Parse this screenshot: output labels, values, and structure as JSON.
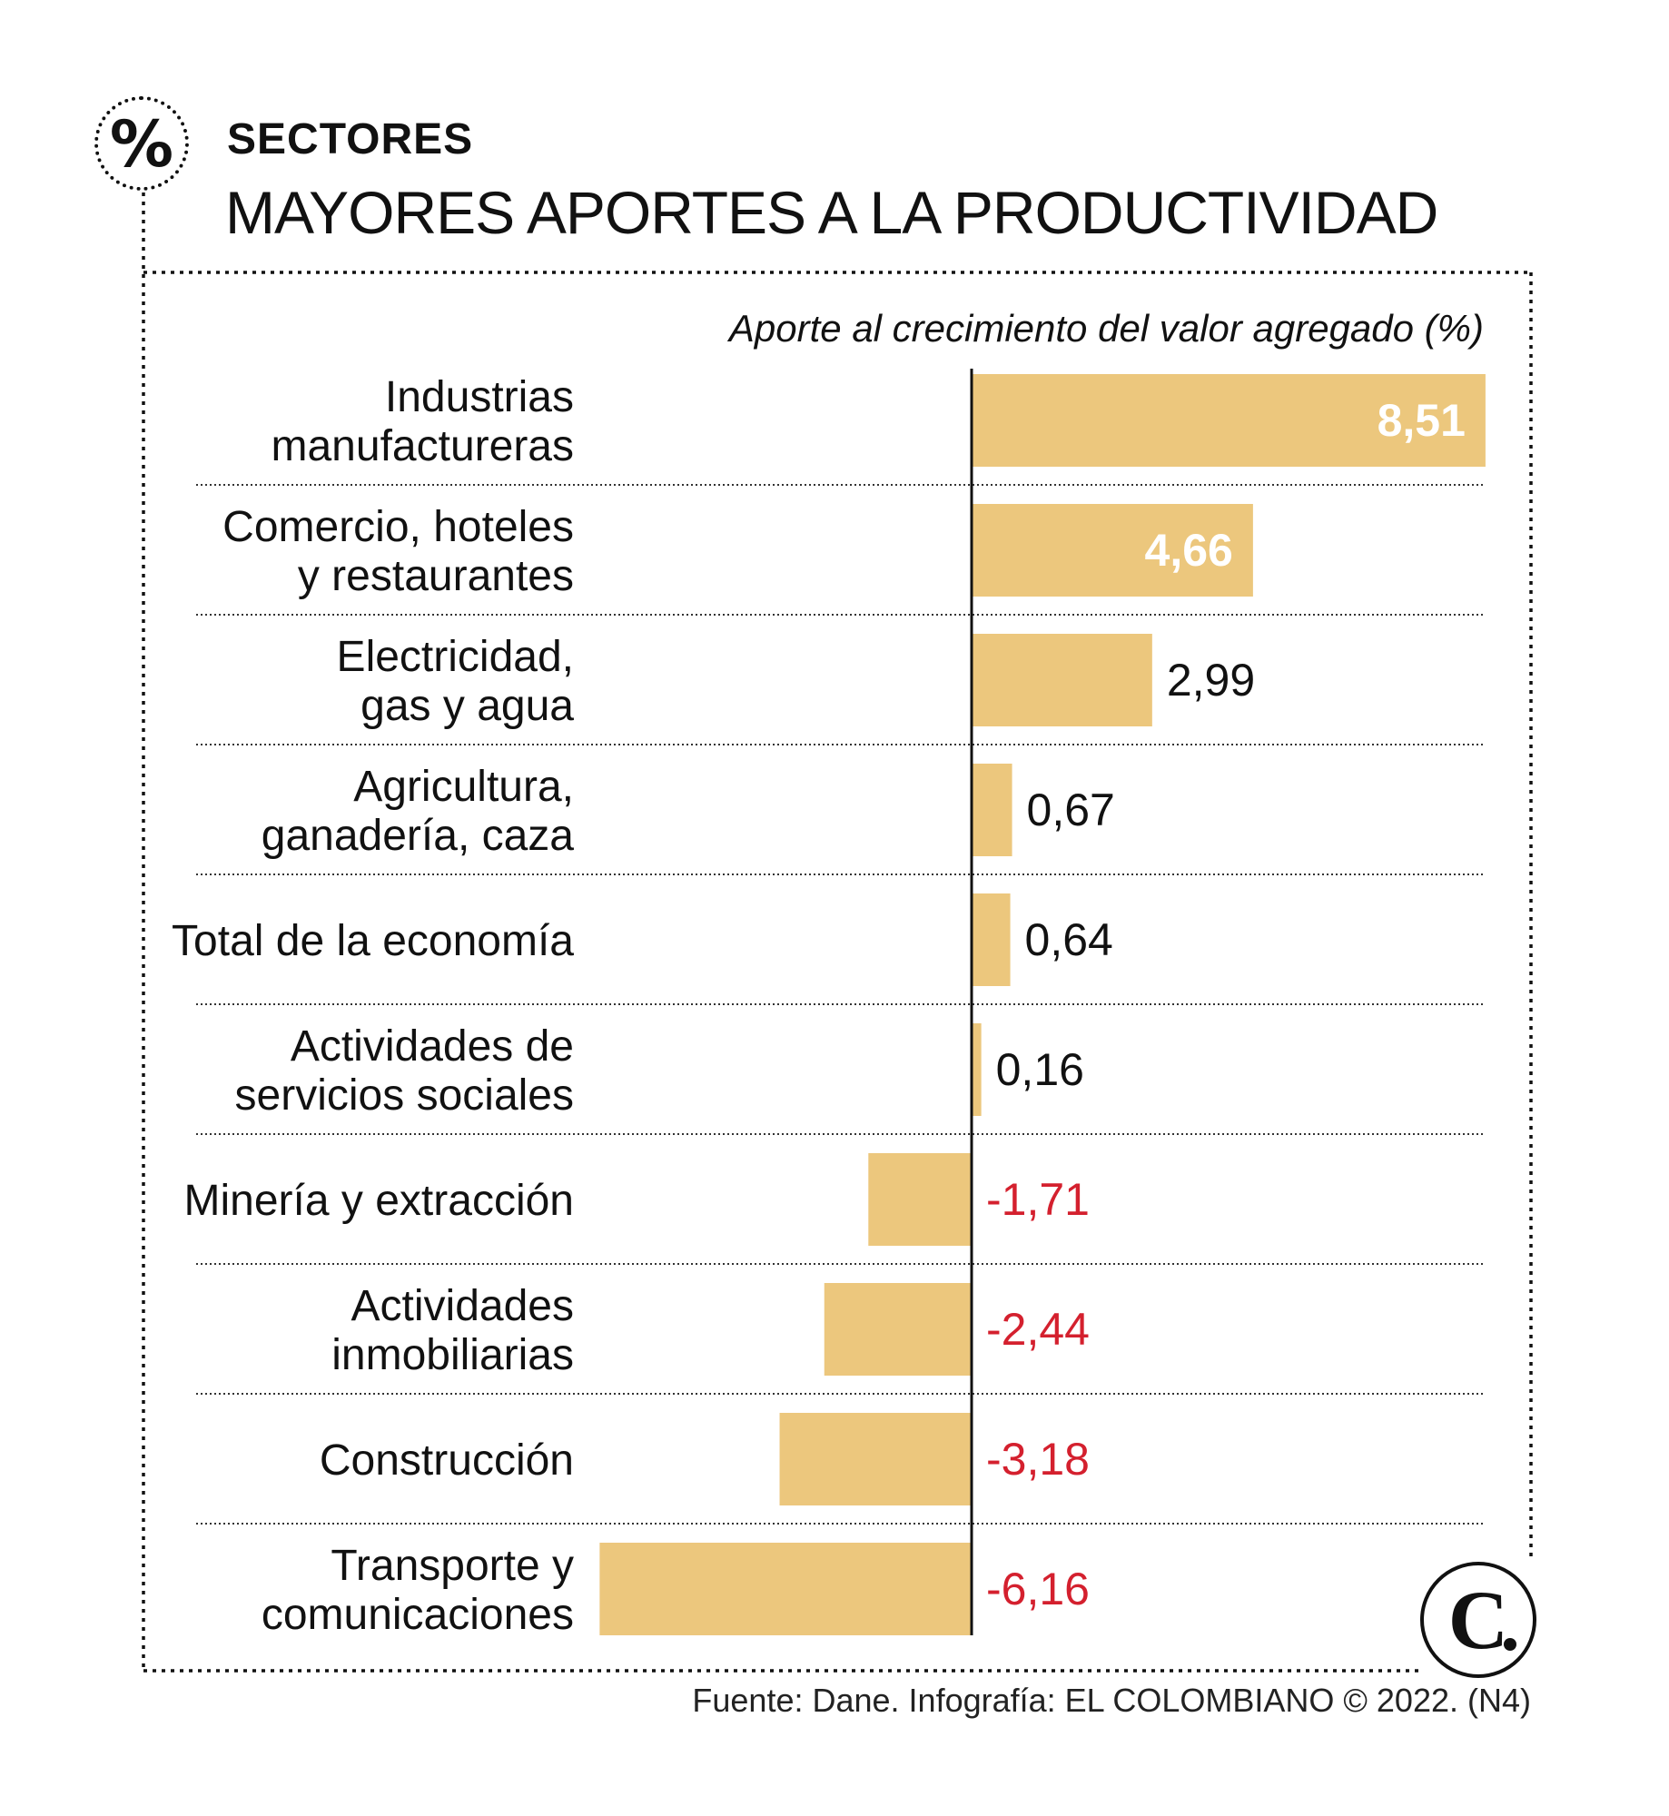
{
  "header": {
    "badge_symbol": "%",
    "section_label": "SECTORES",
    "title": "MAYORES APORTES A LA PRODUCTIVIDAD"
  },
  "chart_data": {
    "type": "bar",
    "orientation": "horizontal",
    "title": "MAYORES APORTES A LA PRODUCTIVIDAD",
    "subtitle": "Aporte al crecimiento del valor agregado (%)",
    "categories": [
      [
        "Industrias",
        "manufactureras"
      ],
      [
        "Comercio, hoteles",
        "y restaurantes"
      ],
      [
        "Electricidad,",
        "gas y agua"
      ],
      [
        "Agricultura,",
        "ganadería, caza"
      ],
      [
        "Total de la economía"
      ],
      [
        "Actividades de",
        "servicios sociales"
      ],
      [
        "Minería y extracción"
      ],
      [
        "Actividades",
        "inmobiliarias"
      ],
      [
        "Construcción"
      ],
      [
        "Transporte y",
        "comunicaciones"
      ]
    ],
    "values": [
      8.51,
      4.66,
      2.99,
      0.67,
      0.64,
      0.16,
      -1.71,
      -2.44,
      -3.18,
      -6.16
    ],
    "value_labels": [
      "8,51",
      "4,66",
      "2,99",
      "0,67",
      "0,64",
      "0,16",
      "-1,71",
      "-2,44",
      "-3,18",
      "-6,16"
    ],
    "xlim": [
      -6.16,
      8.51
    ],
    "grid": false,
    "colors": {
      "bar": "#ecc77d",
      "negative_label": "#d4202e",
      "positive_label": "#111111",
      "inside_label": "#ffffff"
    }
  },
  "footer": {
    "source": "Fuente: Dane. Infografía: EL COLOMBIANO © 2022. (N4)",
    "logo_letter": "C"
  }
}
